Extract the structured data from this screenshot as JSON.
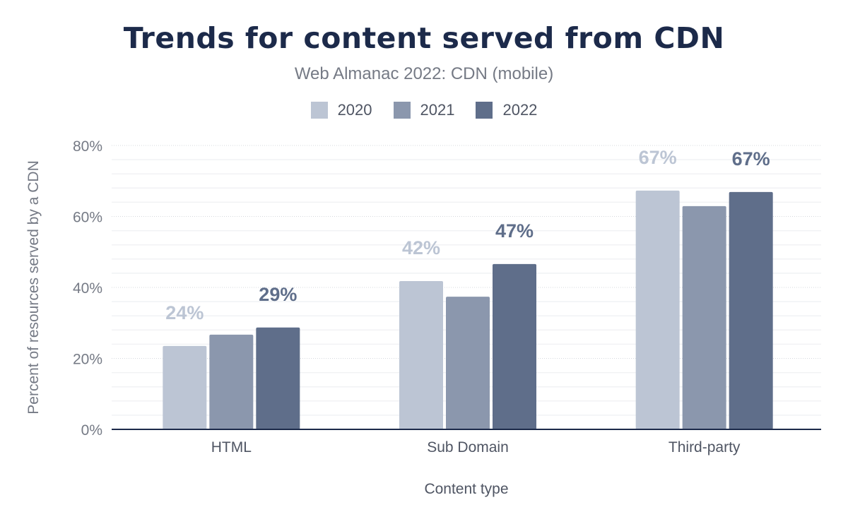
{
  "chart_data": {
    "type": "bar",
    "title": "Trends for content served from CDN",
    "subtitle": "Web Almanac 2022: CDN (mobile)",
    "xlabel": "Content type",
    "ylabel": "Percent of resources served by a CDN",
    "categories": [
      "HTML",
      "Sub Domain",
      "Third-party"
    ],
    "ylim": [
      0,
      80
    ],
    "yticks": [
      0,
      20,
      40,
      60,
      80
    ],
    "ytick_labels": [
      "0%",
      "20%",
      "40%",
      "60%",
      "80%"
    ],
    "grid": true,
    "legend_position": "top",
    "series": [
      {
        "name": "2020",
        "color": "#bcc5d4",
        "values": [
          23.5,
          41.8,
          67.3
        ],
        "labels": [
          "24%",
          "42%",
          "67%"
        ]
      },
      {
        "name": "2021",
        "color": "#8b97ad",
        "values": [
          26.7,
          37.4,
          62.9
        ],
        "labels": [
          "",
          "",
          ""
        ]
      },
      {
        "name": "2022",
        "color": "#5f6e8a",
        "values": [
          28.7,
          46.6,
          66.9
        ],
        "labels": [
          "29%",
          "47%",
          "67%"
        ]
      }
    ]
  }
}
